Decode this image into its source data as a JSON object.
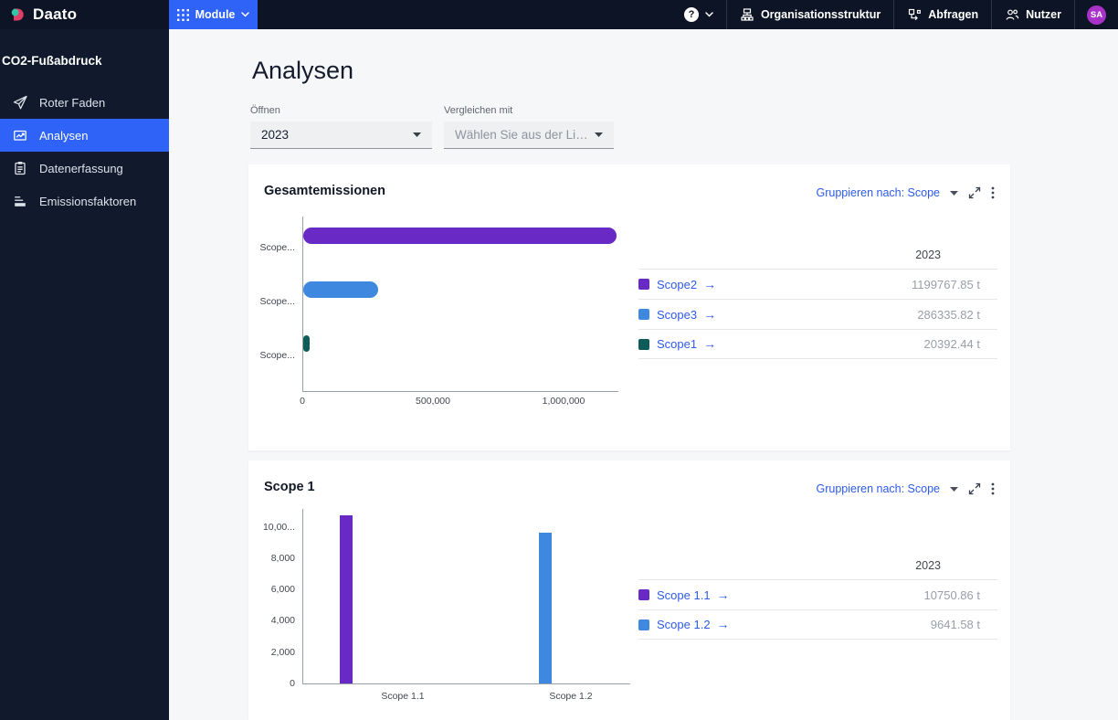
{
  "brand": {
    "name": "Daato"
  },
  "navbar": {
    "module_label": "Module",
    "items": [
      {
        "label": "Organisationsstruktur"
      },
      {
        "label": "Abfragen"
      },
      {
        "label": "Nutzer"
      }
    ],
    "avatar": "SA"
  },
  "sidebar": {
    "section_title": "CO2-Fußabdruck",
    "items": [
      {
        "label": "Roter Faden",
        "icon": "paper-plane-icon"
      },
      {
        "label": "Analysen",
        "icon": "line-chart-icon"
      },
      {
        "label": "Datenerfassung",
        "icon": "clipboard-icon"
      },
      {
        "label": "Emissionsfaktoren",
        "icon": "bar-chart-icon"
      }
    ],
    "active_item": "Analysen"
  },
  "page": {
    "title": "Analysen"
  },
  "filters": {
    "open": {
      "label": "Öffnen",
      "value": "2023"
    },
    "compare": {
      "label": "Vergleichen mit",
      "placeholder": "Wählen Sie aus der Liste a..."
    }
  },
  "cards": [
    {
      "title": "Gesamtemissionen",
      "group_by_label": "Gruppieren nach: Scope",
      "table": {
        "year_header": "2023",
        "rows": [
          {
            "label": "Scope2",
            "value": "1199767.85 t",
            "color": "#6929c4"
          },
          {
            "label": "Scope3",
            "value": "286335.82 t",
            "color": "#3f88df"
          },
          {
            "label": "Scope1",
            "value": "20392.44 t",
            "color": "#0e5c59"
          }
        ]
      }
    },
    {
      "title": "Scope 1",
      "group_by_label": "Gruppieren nach: Scope",
      "table": {
        "year_header": "2023",
        "rows": [
          {
            "label": "Scope 1.1",
            "value": "10750.86 t",
            "color": "#6929c4"
          },
          {
            "label": "Scope 1.2",
            "value": "9641.58 t",
            "color": "#3f88df"
          }
        ]
      }
    }
  ],
  "chart_data": [
    {
      "type": "bar",
      "orientation": "horizontal",
      "title": "Gesamtemissionen",
      "categories": [
        "Scope2",
        "Scope3",
        "Scope1"
      ],
      "categories_display": [
        "Scope...",
        "Scope...",
        "Scope..."
      ],
      "values": [
        1199767.85,
        286335.82,
        20392.44
      ],
      "unit": "t",
      "colors": [
        "#6929c4",
        "#3f88df",
        "#0e5c59"
      ],
      "xticks": [
        0,
        500000,
        1000000
      ],
      "xtick_labels": [
        "0",
        "500,000",
        "1,000,000"
      ],
      "xlim": [
        0,
        1210000
      ],
      "grid": false
    },
    {
      "type": "bar",
      "orientation": "vertical",
      "title": "Scope 1",
      "categories": [
        "Scope 1.1",
        "Scope 1.2"
      ],
      "values": [
        10750.86,
        9641.58
      ],
      "unit": "t",
      "colors": [
        "#6929c4",
        "#3f88df"
      ],
      "yticks": [
        0,
        2000,
        4000,
        6000,
        8000,
        10000
      ],
      "ytick_labels": [
        "0",
        "2,000",
        "4,000",
        "6,000",
        "8,000",
        "10,00..."
      ],
      "ylim": [
        0,
        11000
      ],
      "grid": false
    }
  ],
  "colors": {
    "accent_blue": "#2f62f6",
    "link_blue": "#2d5be8",
    "navbar_bg": "#0c1425",
    "sidebar_bg": "#101a2c",
    "avatar_bg": "#a832c8",
    "page_bg": "#f6f7f9"
  }
}
